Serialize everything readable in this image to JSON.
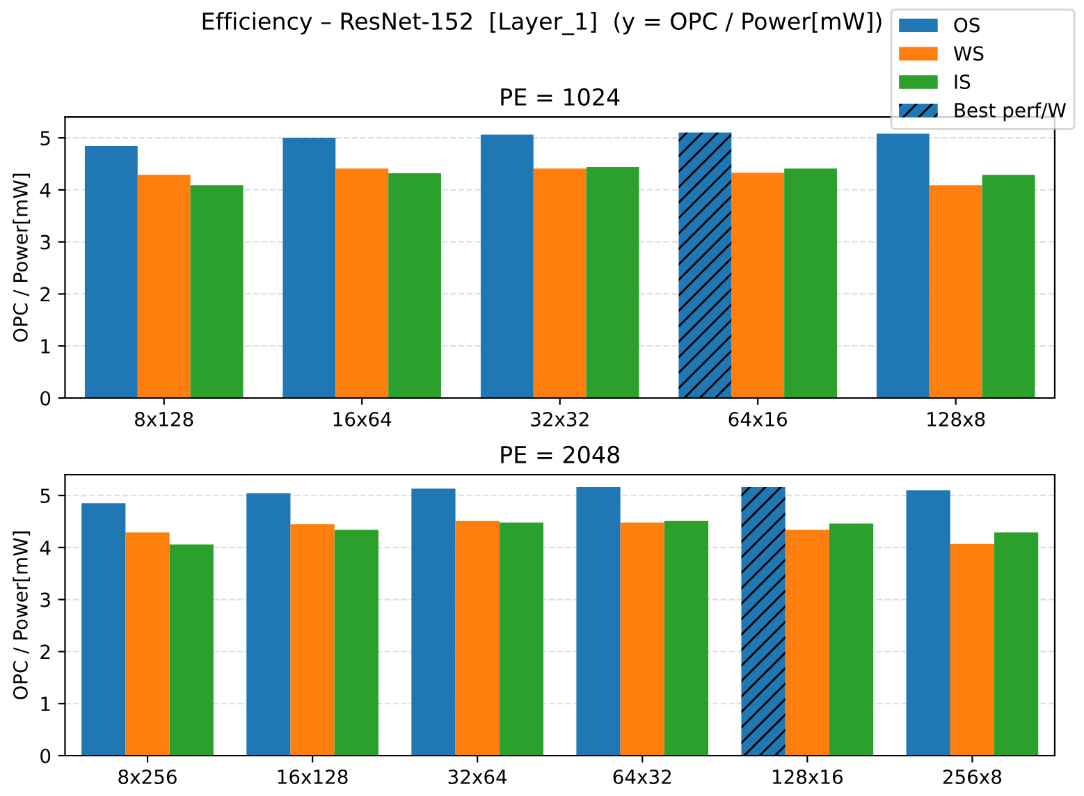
{
  "chart_data": [
    {
      "type": "bar",
      "title": "Efficiency – ResNet-152  [Layer_1]  (y = OPC / Power[mW])",
      "subtitle": "PE = 1024",
      "ylabel": "OPC / Power[mW]",
      "categories": [
        "8x128",
        "16x64",
        "32x32",
        "64x16",
        "128x8"
      ],
      "series": [
        {
          "name": "OS",
          "color": "#1f77b4",
          "values": [
            4.84,
            5.0,
            5.06,
            null,
            5.08
          ]
        },
        {
          "name": "WS",
          "color": "#ff7f0e",
          "values": [
            4.29,
            4.41,
            4.41,
            4.33,
            4.09
          ]
        },
        {
          "name": "IS",
          "color": "#2ca02c",
          "values": [
            4.09,
            4.32,
            4.44,
            4.41,
            4.29
          ]
        },
        {
          "name": "Best perf/W",
          "values": [
            null,
            null,
            null,
            5.1,
            null
          ]
        }
      ],
      "ylim": [
        0,
        5.4
      ],
      "yticks": [
        0,
        1,
        2,
        3,
        4,
        5
      ],
      "grid": "y",
      "legend": "top right"
    },
    {
      "type": "bar",
      "subtitle": "PE = 2048",
      "ylabel": "OPC / Power[mW]",
      "categories": [
        "8x256",
        "16x128",
        "32x64",
        "64x32",
        "128x16",
        "256x8"
      ],
      "series": [
        {
          "color": "#1f77b4",
          "values": [
            4.85,
            5.04,
            5.13,
            5.16,
            null,
            5.1
          ]
        },
        {
          "color": "#ff7f0e",
          "values": [
            4.29,
            4.45,
            4.51,
            4.48,
            4.34,
            4.07
          ]
        },
        {
          "color": "#2ca02c",
          "values": [
            4.06,
            4.34,
            4.48,
            4.51,
            4.46,
            4.29
          ]
        },
        {
          "values": [
            null,
            null,
            null,
            null,
            5.16,
            null
          ]
        }
      ],
      "ylim": [
        0,
        5.4
      ],
      "yticks": [
        0,
        1,
        2,
        3,
        4,
        5
      ],
      "grid": "y"
    }
  ]
}
